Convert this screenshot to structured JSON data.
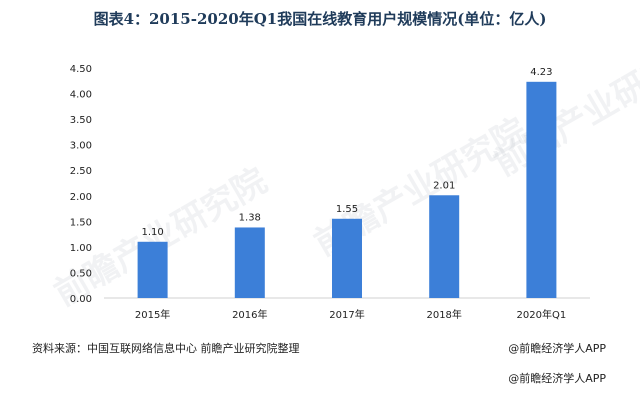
{
  "title": "图表4：2015-2020年Q1我国在线教育用户规模情况(单位：亿人)",
  "source": "资料来源：中国互联网络信息中心 前瞻产业研究院整理",
  "brand_right": "@前瞻经济学人APP",
  "brand_bottom": "@前瞻经济学人APP",
  "watermark_text": "前瞻产业研究院",
  "colors": {
    "bar": "#3c7fd8",
    "axis_text": "#222222",
    "label_text": "#222222"
  },
  "chart_data": {
    "type": "bar",
    "categories": [
      "2015年",
      "2016年",
      "2017年",
      "2018年",
      "2020年Q1"
    ],
    "values": [
      1.1,
      1.38,
      1.55,
      2.01,
      4.23
    ],
    "data_labels": [
      "1.10",
      "1.38",
      "1.55",
      "2.01",
      "4.23"
    ],
    "y_ticks": [
      "0.00",
      "0.50",
      "1.00",
      "1.50",
      "2.00",
      "2.50",
      "3.00",
      "3.50",
      "4.00",
      "4.50"
    ],
    "ylim": [
      0,
      4.5
    ],
    "grid": false,
    "legend": "none"
  }
}
